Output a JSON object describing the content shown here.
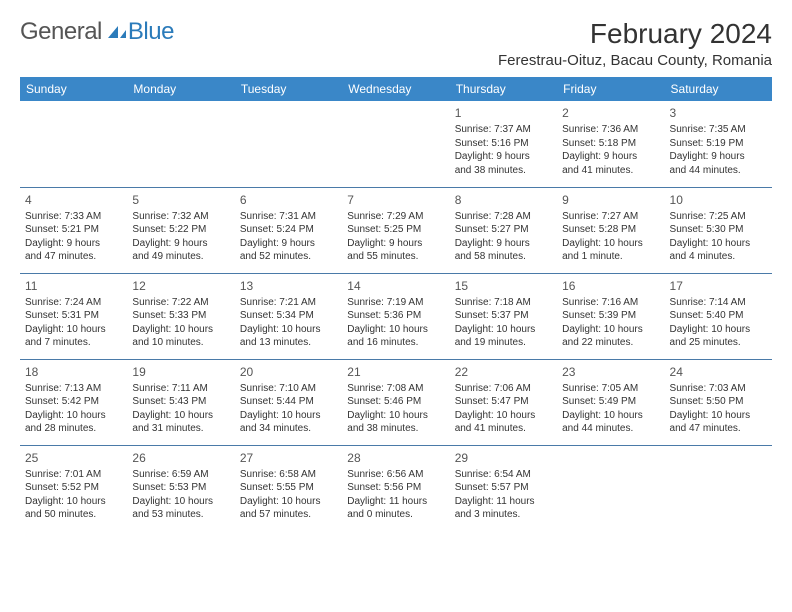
{
  "logo": {
    "general": "General",
    "blue": "Blue"
  },
  "title": "February 2024",
  "location": "Ferestrau-Oituz, Bacau County, Romania",
  "colors": {
    "header_bg": "#3a87c8",
    "header_fg": "#ffffff",
    "border": "#4a7aa8",
    "text": "#333333",
    "logo_blue": "#2b7bba",
    "logo_gray": "#555555"
  },
  "weekdays": [
    "Sunday",
    "Monday",
    "Tuesday",
    "Wednesday",
    "Thursday",
    "Friday",
    "Saturday"
  ],
  "weeks": [
    [
      null,
      null,
      null,
      null,
      {
        "n": "1",
        "sr": "Sunrise: 7:37 AM",
        "ss": "Sunset: 5:16 PM",
        "d1": "Daylight: 9 hours",
        "d2": "and 38 minutes."
      },
      {
        "n": "2",
        "sr": "Sunrise: 7:36 AM",
        "ss": "Sunset: 5:18 PM",
        "d1": "Daylight: 9 hours",
        "d2": "and 41 minutes."
      },
      {
        "n": "3",
        "sr": "Sunrise: 7:35 AM",
        "ss": "Sunset: 5:19 PM",
        "d1": "Daylight: 9 hours",
        "d2": "and 44 minutes."
      }
    ],
    [
      {
        "n": "4",
        "sr": "Sunrise: 7:33 AM",
        "ss": "Sunset: 5:21 PM",
        "d1": "Daylight: 9 hours",
        "d2": "and 47 minutes."
      },
      {
        "n": "5",
        "sr": "Sunrise: 7:32 AM",
        "ss": "Sunset: 5:22 PM",
        "d1": "Daylight: 9 hours",
        "d2": "and 49 minutes."
      },
      {
        "n": "6",
        "sr": "Sunrise: 7:31 AM",
        "ss": "Sunset: 5:24 PM",
        "d1": "Daylight: 9 hours",
        "d2": "and 52 minutes."
      },
      {
        "n": "7",
        "sr": "Sunrise: 7:29 AM",
        "ss": "Sunset: 5:25 PM",
        "d1": "Daylight: 9 hours",
        "d2": "and 55 minutes."
      },
      {
        "n": "8",
        "sr": "Sunrise: 7:28 AM",
        "ss": "Sunset: 5:27 PM",
        "d1": "Daylight: 9 hours",
        "d2": "and 58 minutes."
      },
      {
        "n": "9",
        "sr": "Sunrise: 7:27 AM",
        "ss": "Sunset: 5:28 PM",
        "d1": "Daylight: 10 hours",
        "d2": "and 1 minute."
      },
      {
        "n": "10",
        "sr": "Sunrise: 7:25 AM",
        "ss": "Sunset: 5:30 PM",
        "d1": "Daylight: 10 hours",
        "d2": "and 4 minutes."
      }
    ],
    [
      {
        "n": "11",
        "sr": "Sunrise: 7:24 AM",
        "ss": "Sunset: 5:31 PM",
        "d1": "Daylight: 10 hours",
        "d2": "and 7 minutes."
      },
      {
        "n": "12",
        "sr": "Sunrise: 7:22 AM",
        "ss": "Sunset: 5:33 PM",
        "d1": "Daylight: 10 hours",
        "d2": "and 10 minutes."
      },
      {
        "n": "13",
        "sr": "Sunrise: 7:21 AM",
        "ss": "Sunset: 5:34 PM",
        "d1": "Daylight: 10 hours",
        "d2": "and 13 minutes."
      },
      {
        "n": "14",
        "sr": "Sunrise: 7:19 AM",
        "ss": "Sunset: 5:36 PM",
        "d1": "Daylight: 10 hours",
        "d2": "and 16 minutes."
      },
      {
        "n": "15",
        "sr": "Sunrise: 7:18 AM",
        "ss": "Sunset: 5:37 PM",
        "d1": "Daylight: 10 hours",
        "d2": "and 19 minutes."
      },
      {
        "n": "16",
        "sr": "Sunrise: 7:16 AM",
        "ss": "Sunset: 5:39 PM",
        "d1": "Daylight: 10 hours",
        "d2": "and 22 minutes."
      },
      {
        "n": "17",
        "sr": "Sunrise: 7:14 AM",
        "ss": "Sunset: 5:40 PM",
        "d1": "Daylight: 10 hours",
        "d2": "and 25 minutes."
      }
    ],
    [
      {
        "n": "18",
        "sr": "Sunrise: 7:13 AM",
        "ss": "Sunset: 5:42 PM",
        "d1": "Daylight: 10 hours",
        "d2": "and 28 minutes."
      },
      {
        "n": "19",
        "sr": "Sunrise: 7:11 AM",
        "ss": "Sunset: 5:43 PM",
        "d1": "Daylight: 10 hours",
        "d2": "and 31 minutes."
      },
      {
        "n": "20",
        "sr": "Sunrise: 7:10 AM",
        "ss": "Sunset: 5:44 PM",
        "d1": "Daylight: 10 hours",
        "d2": "and 34 minutes."
      },
      {
        "n": "21",
        "sr": "Sunrise: 7:08 AM",
        "ss": "Sunset: 5:46 PM",
        "d1": "Daylight: 10 hours",
        "d2": "and 38 minutes."
      },
      {
        "n": "22",
        "sr": "Sunrise: 7:06 AM",
        "ss": "Sunset: 5:47 PM",
        "d1": "Daylight: 10 hours",
        "d2": "and 41 minutes."
      },
      {
        "n": "23",
        "sr": "Sunrise: 7:05 AM",
        "ss": "Sunset: 5:49 PM",
        "d1": "Daylight: 10 hours",
        "d2": "and 44 minutes."
      },
      {
        "n": "24",
        "sr": "Sunrise: 7:03 AM",
        "ss": "Sunset: 5:50 PM",
        "d1": "Daylight: 10 hours",
        "d2": "and 47 minutes."
      }
    ],
    [
      {
        "n": "25",
        "sr": "Sunrise: 7:01 AM",
        "ss": "Sunset: 5:52 PM",
        "d1": "Daylight: 10 hours",
        "d2": "and 50 minutes."
      },
      {
        "n": "26",
        "sr": "Sunrise: 6:59 AM",
        "ss": "Sunset: 5:53 PM",
        "d1": "Daylight: 10 hours",
        "d2": "and 53 minutes."
      },
      {
        "n": "27",
        "sr": "Sunrise: 6:58 AM",
        "ss": "Sunset: 5:55 PM",
        "d1": "Daylight: 10 hours",
        "d2": "and 57 minutes."
      },
      {
        "n": "28",
        "sr": "Sunrise: 6:56 AM",
        "ss": "Sunset: 5:56 PM",
        "d1": "Daylight: 11 hours",
        "d2": "and 0 minutes."
      },
      {
        "n": "29",
        "sr": "Sunrise: 6:54 AM",
        "ss": "Sunset: 5:57 PM",
        "d1": "Daylight: 11 hours",
        "d2": "and 3 minutes."
      },
      null,
      null
    ]
  ]
}
